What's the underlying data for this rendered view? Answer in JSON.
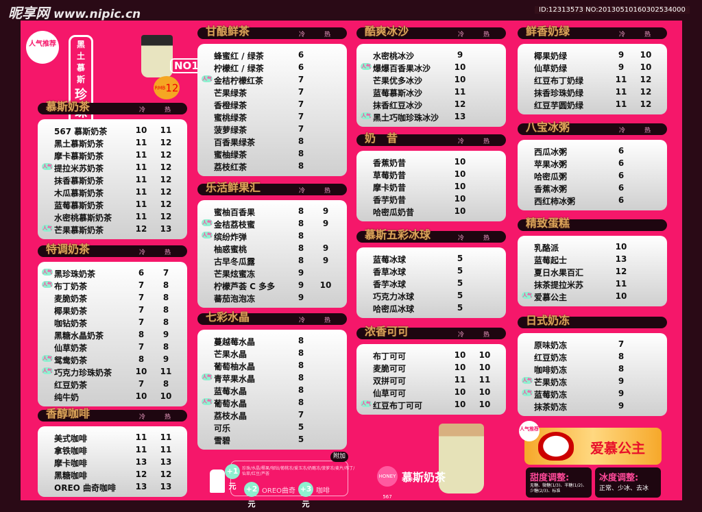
{
  "colors": {
    "background": "#f5176a",
    "border": "#2a0a16",
    "header_bar": "#1e0610",
    "header_text": "#d9a35a",
    "popular_badge": "#8ff0d0"
  },
  "col_labels": {
    "cold": "冷",
    "hot": "热"
  },
  "popular_badge": "人气",
  "featured": {
    "badge": "人气推荐",
    "line1": "黑土慕斯",
    "line2": "珍珠奶茶",
    "rank": "NO1",
    "currency": "RMB",
    "price": "12"
  },
  "sections": [
    {
      "title": "慕斯奶茶",
      "items": [
        [
          "567 慕斯奶茶",
          "10",
          "11"
        ],
        [
          "黑土慕斯奶茶",
          "11",
          "12"
        ],
        [
          "摩卡慕斯奶茶",
          "11",
          "12"
        ],
        [
          "提拉米苏奶茶",
          "11",
          "12",
          1
        ],
        [
          "抹香慕斯奶茶",
          "11",
          "12"
        ],
        [
          "木瓜慕斯奶茶",
          "11",
          "12"
        ],
        [
          "蓝莓慕斯奶茶",
          "11",
          "12"
        ],
        [
          "水密桃慕斯奶茶",
          "11",
          "12"
        ],
        [
          "芒果慕斯奶茶",
          "12",
          "13",
          1
        ]
      ]
    },
    {
      "title": "特调奶茶",
      "items": [
        [
          "黑珍珠奶茶",
          "6",
          "7",
          1
        ],
        [
          "布丁奶茶",
          "7",
          "8",
          1
        ],
        [
          "麦脆奶茶",
          "7",
          "8"
        ],
        [
          "椰果奶茶",
          "7",
          "8"
        ],
        [
          "咖钻奶茶",
          "7",
          "8"
        ],
        [
          "黑糖水晶奶茶",
          "8",
          "9"
        ],
        [
          "仙草奶茶",
          "7",
          "8"
        ],
        [
          "鸳鸯奶茶",
          "8",
          "9",
          1
        ],
        [
          "巧克力珍珠奶茶",
          "10",
          "11",
          1
        ],
        [
          "红豆奶茶",
          "7",
          "8"
        ],
        [
          "纯牛奶",
          "10",
          "10"
        ]
      ]
    },
    {
      "title": "香醇咖啡",
      "items": [
        [
          "美式咖啡",
          "11",
          "11"
        ],
        [
          "拿铁咖啡",
          "11",
          "11"
        ],
        [
          "摩卡咖啡",
          "13",
          "13"
        ],
        [
          "黑糖咖啡",
          "12",
          "12"
        ],
        [
          "OREO 曲奇咖啡",
          "13",
          "13"
        ]
      ]
    },
    {
      "title": "甘酿鲜茶",
      "items": [
        [
          "蜂蜜红 / 绿茶",
          "6",
          ""
        ],
        [
          "柠檬红 / 绿茶",
          "6",
          ""
        ],
        [
          "金桔柠檬红茶",
          "7",
          "",
          1
        ],
        [
          "芒果绿茶",
          "7",
          ""
        ],
        [
          "香橙绿茶",
          "7",
          ""
        ],
        [
          "蜜桃绿茶",
          "7",
          ""
        ],
        [
          "菠萝绿茶",
          "7",
          ""
        ],
        [
          "百香果绿茶",
          "8",
          ""
        ],
        [
          "蜜柚绿茶",
          "8",
          ""
        ],
        [
          "荔枝红茶",
          "8",
          ""
        ]
      ]
    },
    {
      "title": "乐活鲜果汇",
      "items": [
        [
          "蜜柚百香果",
          "8",
          "9"
        ],
        [
          "金桔荔枝蜜",
          "8",
          "9",
          1
        ],
        [
          "缤纷炸弹",
          "8",
          "",
          1
        ],
        [
          "柚惑蜜桃",
          "8",
          "9"
        ],
        [
          "古早冬瓜露",
          "8",
          "9"
        ],
        [
          "芒果炫蜜冻",
          "9",
          ""
        ],
        [
          "柠檬芦荟 C 多多",
          "9",
          "10"
        ],
        [
          "蕃茄泡泡冻",
          "9",
          ""
        ]
      ]
    },
    {
      "title": "七彩水晶",
      "items": [
        [
          "蔓越莓水晶",
          "8",
          ""
        ],
        [
          "芒果水晶",
          "8",
          ""
        ],
        [
          "葡萄柚水晶",
          "8",
          ""
        ],
        [
          "青苹果水晶",
          "8",
          "",
          1
        ],
        [
          "蓝莓水晶",
          "8",
          ""
        ],
        [
          "葡萄水晶",
          "8",
          "",
          1
        ],
        [
          "荔枝水晶",
          "7",
          ""
        ],
        [
          "可乐",
          "5",
          ""
        ],
        [
          "雪碧",
          "5",
          ""
        ]
      ]
    },
    {
      "title": "酷爽冰沙",
      "items": [
        [
          "水密桃冰沙",
          "9",
          ""
        ],
        [
          "爆爆百香果冰沙",
          "10",
          "",
          1
        ],
        [
          "芒果优多冰沙",
          "10",
          ""
        ],
        [
          "蓝莓慕斯冰沙",
          "11",
          ""
        ],
        [
          "抹香红豆冰沙",
          "12",
          ""
        ],
        [
          "黑土巧咖珍珠冰沙",
          "13",
          "",
          1
        ]
      ]
    },
    {
      "title": "奶　昔",
      "items": [
        [
          "香蕉奶昔",
          "10",
          ""
        ],
        [
          "草莓奶昔",
          "10",
          ""
        ],
        [
          "摩卡奶昔",
          "10",
          ""
        ],
        [
          "香芋奶昔",
          "10",
          ""
        ],
        [
          "哈密瓜奶昔",
          "10",
          ""
        ]
      ]
    },
    {
      "title": "慕斯五彩冰球",
      "items": [
        [
          "蓝莓冰球",
          "5",
          ""
        ],
        [
          "香草冰球",
          "5",
          ""
        ],
        [
          "香芋冰球",
          "5",
          ""
        ],
        [
          "巧克力冰球",
          "5",
          ""
        ],
        [
          "哈密瓜冰球",
          "5",
          ""
        ]
      ]
    },
    {
      "title": "浓香可可",
      "items": [
        [
          "布丁可可",
          "10",
          "10"
        ],
        [
          "麦脆可可",
          "10",
          "10"
        ],
        [
          "双拼可可",
          "11",
          "11"
        ],
        [
          "仙草可可",
          "10",
          "10"
        ],
        [
          "红豆布丁可可",
          "10",
          "10",
          1
        ]
      ]
    },
    {
      "title": "鲜香奶绿",
      "items": [
        [
          "椰果奶绿",
          "9",
          "10"
        ],
        [
          "仙草奶绿",
          "9",
          "10"
        ],
        [
          "红豆布丁奶绿",
          "11",
          "12"
        ],
        [
          "抹香珍珠奶绿",
          "11",
          "12"
        ],
        [
          "红豆芋圆奶绿",
          "11",
          "12"
        ]
      ]
    },
    {
      "title": "八宝冰粥",
      "items": [
        [
          "西瓜冰粥",
          "6",
          ""
        ],
        [
          "苹果冰粥",
          "6",
          ""
        ],
        [
          "哈密瓜粥",
          "6",
          ""
        ],
        [
          "香蕉冰粥",
          "6",
          ""
        ],
        [
          "西红柿冰粥",
          "6",
          ""
        ]
      ]
    },
    {
      "title": "精致蛋糕",
      "nocols": true,
      "items": [
        [
          "乳酪派",
          "10",
          ""
        ],
        [
          "蓝莓起士",
          "13",
          ""
        ],
        [
          "夏日水果百汇",
          "12",
          ""
        ],
        [
          "抹茶提拉米苏",
          "11",
          ""
        ],
        [
          "爱慕公主",
          "10",
          "",
          1
        ]
      ]
    },
    {
      "title": "日式奶冻",
      "nocols": true,
      "items": [
        [
          "原味奶冻",
          "7",
          ""
        ],
        [
          "红豆奶冻",
          "8",
          ""
        ],
        [
          "咖啡奶冻",
          "8",
          ""
        ],
        [
          "芒果奶冻",
          "9",
          "",
          1
        ],
        [
          "蓝莓奶冻",
          "9",
          "",
          1
        ],
        [
          "抹茶奶冻",
          "9",
          ""
        ]
      ]
    }
  ],
  "addon": {
    "tag": "附加",
    "plus1": "+1元",
    "plus1_items": "珍珠/水晶/椰果/咖钻/葡桃冻/爱玉冻/奶酪冻/菠萝冻/麦片/布丁/仙草/红豆/芦荟",
    "plus2": "+2元",
    "plus2_item": "OREO曲奇",
    "plus3": "+3元",
    "plus3_item": "咖啡"
  },
  "brand": {
    "logo": "HONEY 567",
    "name": "慕斯奶茶"
  },
  "promo": {
    "badge": "人气推荐",
    "name": "爱慕公主"
  },
  "sweetness": {
    "title": "甜度调整:",
    "options": "无糖、微糖(1/3)、半糖(1/2)、少糖(2/3)、标准"
  },
  "ice": {
    "title": "冰度调整:",
    "options": "正常、少冰、去冰"
  },
  "watermark": {
    "site": "昵享网",
    "url": "www.nipic.cn",
    "id": "ID:12313573 NO:20130510160302534000"
  }
}
